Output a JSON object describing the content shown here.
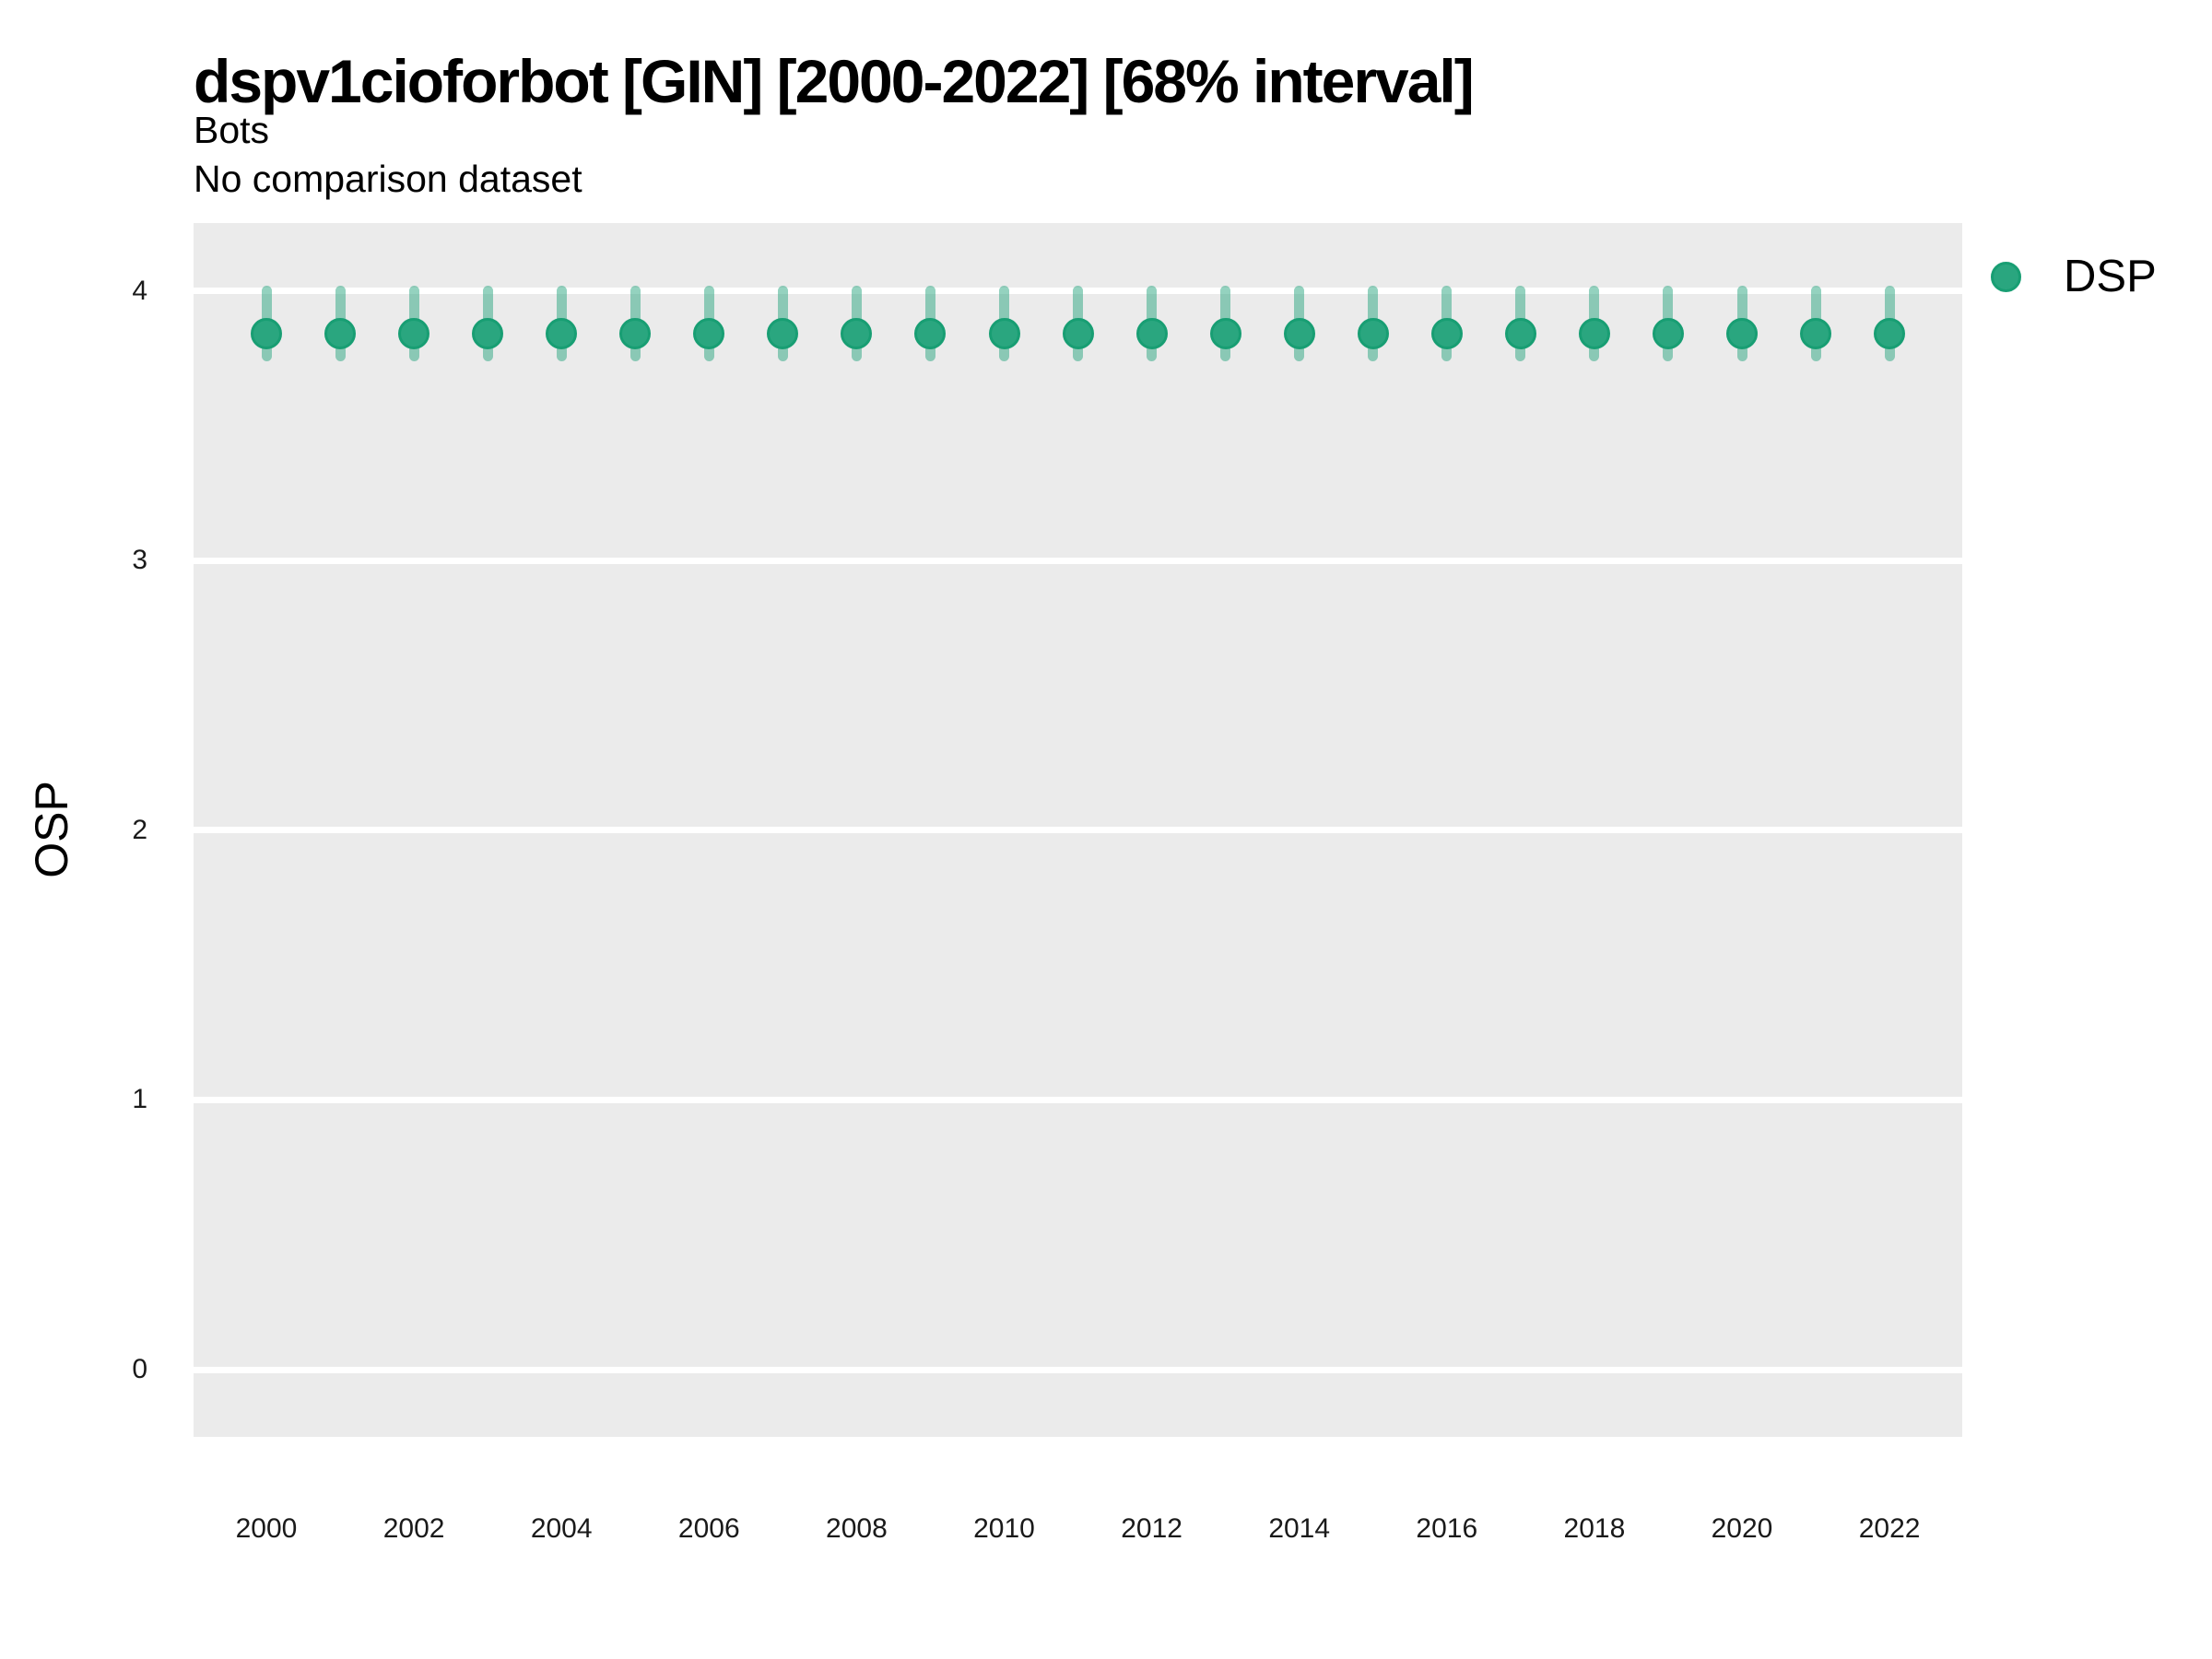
{
  "header": {
    "title": "dspv1cioforbot [GIN] [2000-2022] [68% interval]",
    "subtitle": "Bots",
    "comparison_note": "No comparison dataset"
  },
  "legend": {
    "position": "right",
    "items": [
      {
        "label": "DSP",
        "color": "#2aa67f"
      }
    ]
  },
  "chart_data": {
    "type": "scatter",
    "title": "dspv1cioforbot [GIN] [2000-2022] [68% interval]",
    "subtitle": "Bots",
    "note": "No comparison dataset",
    "interval": "68%",
    "xlabel": "",
    "ylabel": "OSP",
    "x": [
      2000,
      2001,
      2002,
      2003,
      2004,
      2005,
      2006,
      2007,
      2008,
      2009,
      2010,
      2011,
      2012,
      2013,
      2014,
      2015,
      2016,
      2017,
      2018,
      2019,
      2020,
      2021,
      2022
    ],
    "series": [
      {
        "name": "DSP",
        "values": [
          3.84,
          3.84,
          3.84,
          3.84,
          3.84,
          3.84,
          3.84,
          3.84,
          3.84,
          3.84,
          3.84,
          3.84,
          3.84,
          3.84,
          3.84,
          3.84,
          3.84,
          3.84,
          3.84,
          3.84,
          3.84,
          3.84,
          3.84
        ],
        "lower": [
          3.74,
          3.74,
          3.74,
          3.74,
          3.74,
          3.74,
          3.74,
          3.74,
          3.74,
          3.74,
          3.74,
          3.74,
          3.74,
          3.74,
          3.74,
          3.74,
          3.74,
          3.74,
          3.74,
          3.74,
          3.74,
          3.74,
          3.74
        ],
        "upper": [
          4.02,
          4.02,
          4.02,
          4.02,
          4.02,
          4.02,
          4.02,
          4.02,
          4.02,
          4.02,
          4.02,
          4.02,
          4.02,
          4.02,
          4.02,
          4.02,
          4.02,
          4.02,
          4.02,
          4.02,
          4.02,
          4.02,
          4.02
        ]
      }
    ],
    "xticks": [
      2000,
      2002,
      2004,
      2006,
      2008,
      2010,
      2012,
      2014,
      2016,
      2018,
      2020,
      2022
    ],
    "yticks": [
      0,
      1,
      2,
      3,
      4
    ],
    "ylim": [
      -0.25,
      4.25
    ],
    "grid": "horizontal-major-only",
    "legend_position": "right",
    "colors": {
      "point": "#2aa67f",
      "point_border": "#189e73",
      "interval_band": "#8ac8b5",
      "interval_rgba": "rgba(42,166,127,0.5)",
      "panel_bg": "#ebebeb",
      "gridline": "#ffffff",
      "text": "#000000"
    }
  }
}
